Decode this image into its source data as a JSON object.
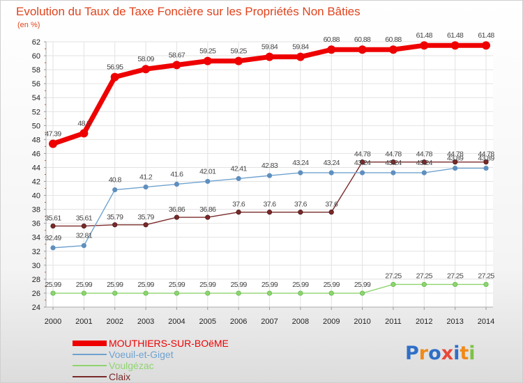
{
  "chart_data": {
    "type": "line",
    "title": "Evolution du Taux de Taxe Foncière sur les Propriétés Non Bâties",
    "subtitle": "(en %)",
    "xlabel": "",
    "ylabel": "",
    "ylim": [
      24,
      62
    ],
    "yticks": [
      24,
      26,
      28,
      30,
      32,
      34,
      36,
      38,
      40,
      42,
      44,
      46,
      48,
      50,
      52,
      54,
      56,
      58,
      60,
      62
    ],
    "x": [
      "2000",
      "2001",
      "2002",
      "2003",
      "2004",
      "2005",
      "2006",
      "2007",
      "2008",
      "2009",
      "2010",
      "2011",
      "2012",
      "2013",
      "2014"
    ],
    "grid": true,
    "legend_position": "bottom-left",
    "series": [
      {
        "name": "MOUTHIERS-SUR-BOëME",
        "color": "#ee0000",
        "values": [
          47.39,
          48.9,
          56.95,
          58.09,
          58.67,
          59.25,
          59.25,
          59.84,
          59.84,
          60.88,
          60.88,
          60.88,
          61.48,
          61.48,
          61.48
        ],
        "labels": [
          "47.39",
          "48.9",
          "56.95",
          "58.09",
          "58.67",
          "59.25",
          "59.25",
          "59.84",
          "59.84",
          "60.88",
          "60.88",
          "60.88",
          "61.48",
          "61.48",
          "61.48"
        ]
      },
      {
        "name": "Voeuil-et-Giget",
        "color": "#6fa2cf",
        "values": [
          32.49,
          32.81,
          40.8,
          41.2,
          41.6,
          42.01,
          42.41,
          42.83,
          43.24,
          43.24,
          43.24,
          43.24,
          43.24,
          43.89,
          43.89
        ],
        "labels": [
          "32.49",
          "32.81",
          "40.8",
          "41.2",
          "41.6",
          "42.01",
          "42.41",
          "42.83",
          "43.24",
          "43.24",
          "43.24",
          "43.24",
          "43.24",
          "43.89",
          "43.89"
        ]
      },
      {
        "name": "Voulgézac",
        "color": "#8fd46f",
        "values": [
          25.99,
          25.99,
          25.99,
          25.99,
          25.99,
          25.99,
          25.99,
          25.99,
          25.99,
          25.99,
          25.99,
          27.25,
          27.25,
          27.25,
          27.25
        ],
        "labels": [
          "25.99",
          "25.99",
          "25.99",
          "25.99",
          "25.99",
          "25.99",
          "25.99",
          "25.99",
          "25.99",
          "25.99",
          "25.99",
          "27.25",
          "27.25",
          "27.25",
          "27.25"
        ]
      },
      {
        "name": "Claix",
        "color": "#7a2a2a",
        "values": [
          35.61,
          35.61,
          35.79,
          35.79,
          36.86,
          36.86,
          37.6,
          37.6,
          37.6,
          37.6,
          44.78,
          44.78,
          44.78,
          44.78,
          44.78
        ],
        "labels": [
          "35.61",
          "35.61",
          "35.79",
          "35.79",
          "36.86",
          "36.86",
          "37.6",
          "37.6",
          "37.6",
          "37.6",
          "44.78",
          "44.78",
          "44.78",
          "44.78",
          "44.78"
        ]
      }
    ]
  },
  "logo": {
    "text": "Proxiti",
    "letter_colors": [
      "#2f6fc6",
      "#f08a17",
      "#2f6fc6",
      "#e8483b",
      "#2f6fc6",
      "#f08a17",
      "#7cc242"
    ]
  }
}
